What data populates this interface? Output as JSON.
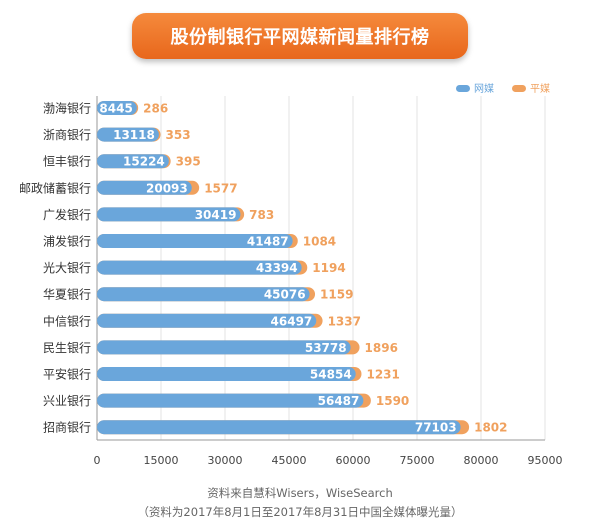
{
  "title": "股份制银行平网媒新闻量排行榜",
  "source_line1": "资料来自慧科Wisers，WiseSearch",
  "source_line2": "（资料为2017年8月1日至2017年8月31日中国全媒体曝光量）",
  "chart_data": {
    "type": "bar",
    "orientation": "horizontal",
    "stacked": true,
    "title": "股份制银行平网媒新闻量排行榜",
    "categories": [
      "渤海银行",
      "浙商银行",
      "恒丰银行",
      "邮政储蓄银行",
      "广发银行",
      "浦发银行",
      "光大银行",
      "华夏银行",
      "中信银行",
      "民生银行",
      "平安银行",
      "兴业银行",
      "招商银行"
    ],
    "series": [
      {
        "name": "网媒",
        "color": "#6aa6db",
        "values": [
          8445,
          13118,
          15224,
          20093,
          30419,
          41487,
          43394,
          45076,
          46497,
          53778,
          54854,
          56487,
          77103
        ]
      },
      {
        "name": "平媒",
        "color": "#f0a15e",
        "values": [
          286,
          353,
          395,
          1577,
          783,
          1084,
          1194,
          1159,
          1337,
          1896,
          1231,
          1590,
          1802
        ]
      }
    ],
    "xlim": [
      0,
      95000
    ],
    "xticks": [
      "0",
      "15000",
      "30000",
      "45000",
      "60000",
      "75000",
      "80000",
      "95000"
    ],
    "grid": true,
    "legend_position": "top-right",
    "data_labels": true
  }
}
